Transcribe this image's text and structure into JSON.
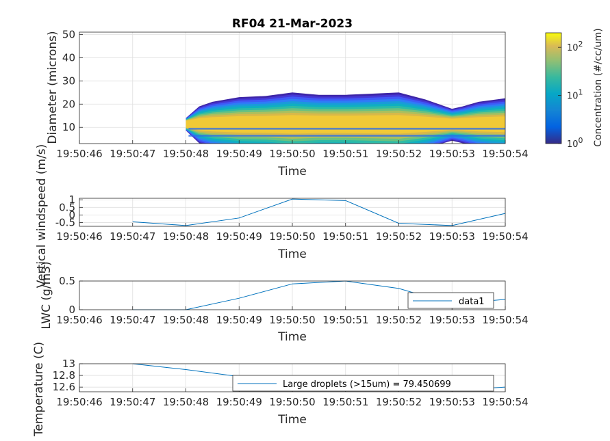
{
  "time_ticks": [
    "19:50:46",
    "19:50:47",
    "19:50:48",
    "19:50:49",
    "19:50:50",
    "19:50:51",
    "19:50:52",
    "19:50:53",
    "19:50:54"
  ],
  "colorbar": {
    "label": "Concentration (#/cc/um)",
    "ticks": [
      {
        "base": "10",
        "exp": "0",
        "value": 1
      },
      {
        "base": "10",
        "exp": "1",
        "value": 10
      },
      {
        "base": "10",
        "exp": "2",
        "value": 100
      }
    ],
    "scale": "log",
    "colormap": "parula",
    "range": [
      1,
      200
    ]
  },
  "chart_data": [
    {
      "id": "size-distribution",
      "type": "heatmap",
      "title": "RF04 21-Mar-2023",
      "xlabel": "Time",
      "ylabel": "Diameter (microns)",
      "x_ticks": [
        "19:50:46",
        "19:50:47",
        "19:50:48",
        "19:50:49",
        "19:50:50",
        "19:50:51",
        "19:50:52",
        "19:50:53",
        "19:50:54"
      ],
      "ylim": [
        3,
        51
      ],
      "y_ticks": [
        10,
        20,
        30,
        40,
        50
      ],
      "grid": true,
      "note_values": "estimated contour envelope (upper diameter of detectable concentration) over time",
      "x": [
        2.0,
        2.25,
        2.5,
        3.0,
        3.5,
        4.0,
        4.5,
        5.0,
        5.5,
        6.0,
        6.5,
        7.0,
        7.2,
        7.5,
        8.0
      ],
      "upper_diameter": [
        14,
        19,
        21,
        23,
        23.5,
        25,
        24,
        24,
        24.5,
        25,
        22,
        18,
        19,
        21,
        22.5
      ]
    },
    {
      "id": "vertical-windspeed",
      "type": "line",
      "xlabel": "Time",
      "ylabel": "Vertical windspeed (m/s)",
      "ylim": [
        -0.75,
        1.1
      ],
      "y_ticks": [
        {
          "value": -0.5,
          "label": "-0.5"
        },
        {
          "value": 0,
          "label": "0"
        },
        {
          "value": 0.5,
          "label": "0.5"
        },
        {
          "value": 1,
          "label": "1"
        }
      ],
      "grid": true,
      "color": "#0072BD",
      "x": [
        "19:50:47",
        "19:50:48",
        "19:50:49",
        "19:50:50",
        "19:50:51",
        "19:50:52",
        "19:50:53",
        "19:50:54"
      ],
      "values": [
        -0.45,
        -0.7,
        -0.2,
        1.05,
        0.95,
        -0.55,
        -0.7,
        0.1
      ]
    },
    {
      "id": "lwc",
      "type": "line",
      "xlabel": "Time",
      "ylabel": "LWC (g/m3)",
      "ylim": [
        0,
        0.5
      ],
      "y_ticks": [
        {
          "value": 0,
          "label": "0"
        },
        {
          "value": 0.5,
          "label": "0.5"
        }
      ],
      "grid": true,
      "color": "#0072BD",
      "legend": {
        "entries": [
          "data1"
        ],
        "placement": "bottom-right"
      },
      "x": [
        "19:50:47",
        "19:50:48",
        "19:50:49",
        "19:50:50",
        "19:50:51",
        "19:50:52",
        "19:50:53",
        "19:50:54"
      ],
      "values": [
        0,
        0,
        0.2,
        0.45,
        0.5,
        0.37,
        0.1,
        0.18
      ]
    },
    {
      "id": "temperature",
      "type": "line",
      "xlabel": "Time",
      "ylabel": "Temperature (C)",
      "ylim": [
        12.52,
        13
      ],
      "y_ticks": [
        {
          "value": 12.6,
          "label": "12.6"
        },
        {
          "value": 12.8,
          "label": "12.8"
        },
        {
          "value": 13,
          "label": "13"
        }
      ],
      "grid": true,
      "color": "#0072BD",
      "legend": {
        "entries": [
          "Large droplets (>15um) = 79.450699"
        ],
        "placement": "bottom-right"
      },
      "x": [
        "19:50:47",
        "19:50:48",
        "19:50:49",
        "19:50:50",
        "19:50:51",
        "19:50:52",
        "19:50:53",
        "19:50:54"
      ],
      "values": [
        13.0,
        12.9,
        12.78,
        12.7,
        12.64,
        12.58,
        12.54,
        12.6
      ]
    }
  ]
}
